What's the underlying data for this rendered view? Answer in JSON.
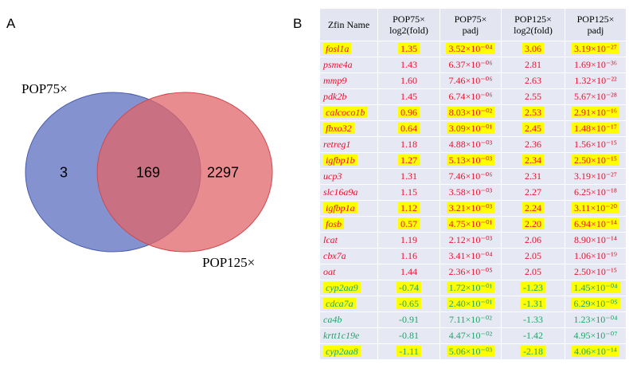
{
  "panels": {
    "a": "A",
    "b": "B"
  },
  "venn": {
    "set1_label": "POP75×",
    "set2_label": "POP125×",
    "only_set1": "3",
    "overlap": "169",
    "only_set2": "2297",
    "colors": {
      "set1": "#5b6fc0",
      "set2": "#e0656a"
    }
  },
  "table": {
    "headers": [
      "Zfin Name",
      "POP75×\nlog2(fold)",
      "POP75×\npadj",
      "POP125×\nlog2(fold)",
      "POP125×\npadj"
    ],
    "colors": {
      "up": "#e8112d",
      "down": "#1fa36b",
      "highlight": "#ffff00"
    },
    "rows": [
      {
        "name": "fosl1a",
        "l75": "1.35",
        "p75": "3.52×10⁻⁰⁴",
        "l125": "3.06",
        "p125": "3.19×10⁻²⁷",
        "dir": "up",
        "hl": true
      },
      {
        "name": "psme4a",
        "l75": "1.43",
        "p75": "6.37×10⁻⁰⁶",
        "l125": "2.81",
        "p125": "1.69×10⁻³⁶",
        "dir": "up",
        "hl": false
      },
      {
        "name": "mmp9",
        "l75": "1.60",
        "p75": "7.46×10⁻⁰⁶",
        "l125": "2.63",
        "p125": "1.32×10⁻²²",
        "dir": "up",
        "hl": false
      },
      {
        "name": "pdk2b",
        "l75": "1.45",
        "p75": "6.74×10⁻⁰⁶",
        "l125": "2.55",
        "p125": "5.67×10⁻²⁸",
        "dir": "up",
        "hl": false
      },
      {
        "name": "calcoco1b",
        "l75": "0.96",
        "p75": "8.03×10⁻⁰²",
        "l125": "2.53",
        "p125": "2.91×10⁻¹⁶",
        "dir": "up",
        "hl": true
      },
      {
        "name": "fbxo32",
        "l75": "0.64",
        "p75": "3.09×10⁻⁰¹",
        "l125": "2.45",
        "p125": "1.48×10⁻¹⁷",
        "dir": "up",
        "hl": true
      },
      {
        "name": "retreg1",
        "l75": "1.18",
        "p75": "4.88×10⁻⁰³",
        "l125": "2.36",
        "p125": "1.56×10⁻¹⁵",
        "dir": "up",
        "hl": false
      },
      {
        "name": "igfbp1b",
        "l75": "1.27",
        "p75": "5.13×10⁻⁰³",
        "l125": "2.34",
        "p125": "2.50×10⁻¹⁵",
        "dir": "up",
        "hl": true
      },
      {
        "name": "ucp3",
        "l75": "1.31",
        "p75": "7.46×10⁻⁰⁶",
        "l125": "2.31",
        "p125": "3.19×10⁻²⁷",
        "dir": "up",
        "hl": false
      },
      {
        "name": "slc16a9a",
        "l75": "1.15",
        "p75": "3.58×10⁻⁰³",
        "l125": "2.27",
        "p125": "6.25×10⁻¹⁸",
        "dir": "up",
        "hl": false
      },
      {
        "name": "igfbp1a",
        "l75": "1.12",
        "p75": "3.21×10⁻⁰³",
        "l125": "2.24",
        "p125": "3.11×10⁻²⁰",
        "dir": "up",
        "hl": true
      },
      {
        "name": "fosb",
        "l75": "0.57",
        "p75": "4.75×10⁻⁰¹",
        "l125": "2.20",
        "p125": "6.94×10⁻¹⁴",
        "dir": "up",
        "hl": true
      },
      {
        "name": "lcat",
        "l75": "1.19",
        "p75": "2.12×10⁻⁰³",
        "l125": "2.06",
        "p125": "8.90×10⁻¹⁴",
        "dir": "up",
        "hl": false
      },
      {
        "name": "cbx7a",
        "l75": "1.16",
        "p75": "3.41×10⁻⁰⁴",
        "l125": "2.05",
        "p125": "1.06×10⁻¹⁹",
        "dir": "up",
        "hl": false
      },
      {
        "name": "oat",
        "l75": "1.44",
        "p75": "2.36×10⁻⁰⁵",
        "l125": "2.05",
        "p125": "2.50×10⁻¹⁵",
        "dir": "up",
        "hl": false
      },
      {
        "name": "cyp2aa9",
        "l75": "-0.74",
        "p75": "1.72×10⁻⁰¹",
        "l125": "-1.23",
        "p125": "1.45×10⁻⁰⁴",
        "dir": "down",
        "hl": true
      },
      {
        "name": "cdca7a",
        "l75": "-0.65",
        "p75": "2.40×10⁻⁰¹",
        "l125": "-1.31",
        "p125": "6.29×10⁻⁰⁵",
        "dir": "down",
        "hl": true
      },
      {
        "name": "ca4b",
        "l75": "-0.91",
        "p75": "7.11×10⁻⁰²",
        "l125": "-1.33",
        "p125": "1.23×10⁻⁰⁴",
        "dir": "down",
        "hl": false
      },
      {
        "name": "krtt1c19e",
        "l75": "-0.81",
        "p75": "4.47×10⁻⁰²",
        "l125": "-1.42",
        "p125": "4.95×10⁻⁰⁷",
        "dir": "down",
        "hl": false
      },
      {
        "name": "cyp2aa8",
        "l75": "-1.11",
        "p75": "5.06×10⁻⁰³",
        "l125": "-2.18",
        "p125": "4.06×10⁻¹⁴",
        "dir": "down",
        "hl": true
      }
    ]
  }
}
